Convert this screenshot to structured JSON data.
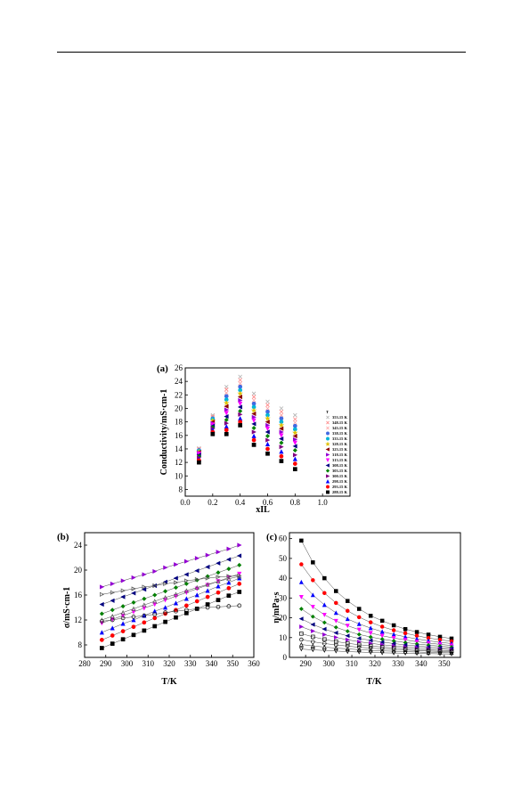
{
  "chart_data": [
    {
      "id": "a",
      "type": "scatter",
      "panel_label": "(a)",
      "xlabel": "xIL",
      "ylabel": "Conductivity/mS·cm-1",
      "xlim": [
        0,
        1.2
      ],
      "ylim": [
        7,
        26
      ],
      "xticks": [
        "0.0",
        "0.2",
        "0.4",
        "0.6",
        "0.8",
        "1.0"
      ],
      "yticks": [
        "8",
        "10",
        "12",
        "14",
        "16",
        "18",
        "20",
        "22",
        "24",
        "26"
      ],
      "legend_title": "T",
      "legend_placement": "right",
      "x": [
        0.1,
        0.2,
        0.3,
        0.4,
        0.5,
        0.6,
        0.7,
        0.8
      ],
      "series": [
        {
          "name": "353.15 K",
          "color": "#b0b0b0",
          "marker": "x",
          "values": [
            14.1,
            19.0,
            23.2,
            24.7,
            22.2,
            21.0,
            20.0,
            19.0
          ]
        },
        {
          "name": "348.15 K",
          "color": "#ff7f7f",
          "marker": "x",
          "values": [
            14.0,
            18.8,
            22.8,
            24.2,
            21.7,
            20.5,
            19.5,
            18.4
          ]
        },
        {
          "name": "343.15 K",
          "color": "#ffa0a0",
          "marker": "x",
          "values": [
            13.9,
            18.7,
            22.3,
            23.7,
            21.2,
            20.0,
            19.0,
            17.9
          ]
        },
        {
          "name": "338.15 K",
          "color": "#4169e1",
          "marker": "circle",
          "values": [
            13.8,
            18.5,
            21.8,
            23.2,
            20.7,
            19.5,
            18.5,
            17.4
          ]
        },
        {
          "name": "333.15 K",
          "color": "#00b4d8",
          "marker": "circle",
          "values": [
            13.7,
            18.4,
            21.3,
            22.7,
            20.2,
            19.0,
            18.0,
            16.9
          ]
        },
        {
          "name": "328.15 K",
          "color": "#e0c000",
          "marker": "star",
          "values": [
            13.6,
            18.2,
            20.8,
            22.2,
            19.7,
            18.5,
            17.5,
            16.4
          ]
        },
        {
          "name": "323.15 K",
          "color": "#8b0000",
          "marker": "triangle-left",
          "values": [
            13.5,
            18.0,
            20.3,
            21.7,
            19.2,
            18.0,
            17.0,
            15.9
          ]
        },
        {
          "name": "318.15 K",
          "color": "#9400d3",
          "marker": "triangle-right",
          "values": [
            13.4,
            17.8,
            19.8,
            21.2,
            18.7,
            17.5,
            16.5,
            15.4
          ]
        },
        {
          "name": "313.15 K",
          "color": "#ff00ff",
          "marker": "triangle-down",
          "values": [
            13.3,
            17.6,
            19.3,
            20.7,
            18.2,
            17.0,
            16.0,
            14.9
          ]
        },
        {
          "name": "308.15 K",
          "color": "#000080",
          "marker": "triangle-left",
          "values": [
            13.1,
            17.4,
            18.8,
            20.2,
            17.7,
            16.5,
            15.5,
            14.4
          ]
        },
        {
          "name": "303.15 K",
          "color": "#008000",
          "marker": "diamond",
          "values": [
            12.9,
            17.2,
            18.3,
            19.6,
            17.1,
            15.9,
            14.9,
            13.8
          ]
        },
        {
          "name": "300.15 K",
          "color": "#800080",
          "marker": "triangle-right",
          "values": [
            12.7,
            17.0,
            17.8,
            19.1,
            16.5,
            15.3,
            14.3,
            13.1
          ]
        },
        {
          "name": "298.15 K",
          "color": "#0000ff",
          "marker": "triangle-up",
          "values": [
            12.5,
            16.8,
            17.3,
            18.5,
            15.9,
            14.7,
            13.6,
            12.5
          ]
        },
        {
          "name": "293.15 K",
          "color": "#ff0000",
          "marker": "circle",
          "values": [
            12.3,
            16.5,
            16.8,
            18.0,
            15.3,
            14.0,
            12.9,
            11.8
          ]
        },
        {
          "name": "288.15 K",
          "color": "#000000",
          "marker": "square",
          "values": [
            12.0,
            16.2,
            16.2,
            17.5,
            14.6,
            13.3,
            12.2,
            11.0
          ]
        }
      ]
    },
    {
      "id": "b",
      "type": "scatter",
      "panel_label": "(b)",
      "xlabel": "T/K",
      "ylabel": "σ/mS·cm-1",
      "xlim": [
        280,
        360
      ],
      "ylim": [
        6,
        26
      ],
      "xticks": [
        "280",
        "290",
        "300",
        "310",
        "320",
        "330",
        "340",
        "350",
        "360"
      ],
      "yticks": [
        "8",
        "12",
        "16",
        "20",
        "24"
      ],
      "x": [
        288.15,
        293.15,
        298.15,
        303.15,
        308.15,
        313.15,
        318.15,
        323.15,
        328.15,
        333.15,
        338.15,
        343.15,
        348.15,
        353.15
      ],
      "series": [
        {
          "color": "#000000",
          "marker": "square",
          "filled": true,
          "values": [
            7.5,
            8.2,
            8.9,
            9.6,
            10.3,
            11.0,
            11.7,
            12.4,
            13.1,
            13.8,
            14.5,
            15.2,
            15.9,
            16.5
          ]
        },
        {
          "color": "#ff0000",
          "marker": "circle",
          "filled": true,
          "values": [
            8.8,
            9.5,
            10.2,
            10.9,
            11.6,
            12.3,
            13.0,
            13.6,
            14.3,
            15.0,
            15.7,
            16.4,
            17.1,
            17.8
          ]
        },
        {
          "color": "#0000ff",
          "marker": "triangle-up",
          "filled": true,
          "values": [
            10.0,
            10.7,
            11.4,
            12.0,
            12.7,
            13.4,
            14.0,
            14.7,
            15.4,
            16.0,
            16.7,
            17.4,
            18.0,
            18.7
          ]
        },
        {
          "color": "#ff00ff",
          "marker": "triangle-down",
          "filled": true,
          "values": [
            11.5,
            12.1,
            12.7,
            13.3,
            13.9,
            14.5,
            15.2,
            15.8,
            16.4,
            17.0,
            17.6,
            18.2,
            18.8,
            19.4
          ]
        },
        {
          "color": "#008000",
          "marker": "diamond",
          "filled": true,
          "values": [
            13.0,
            13.6,
            14.2,
            14.8,
            15.4,
            16.0,
            16.6,
            17.2,
            17.8,
            18.4,
            19.0,
            19.6,
            20.2,
            20.8
          ]
        },
        {
          "color": "#000080",
          "marker": "triangle-left",
          "filled": true,
          "values": [
            14.5,
            15.1,
            15.7,
            16.3,
            16.9,
            17.5,
            18.1,
            18.7,
            19.3,
            19.9,
            20.5,
            21.1,
            21.7,
            22.3
          ]
        },
        {
          "color": "#9400d3",
          "marker": "triangle-right",
          "filled": true,
          "values": [
            17.3,
            17.8,
            18.3,
            18.8,
            19.3,
            19.8,
            20.4,
            20.9,
            21.4,
            21.9,
            22.4,
            22.9,
            23.4,
            24.0
          ]
        },
        {
          "color": "#000000",
          "marker": "circle",
          "filled": false,
          "values": [
            11.8,
            12.0,
            12.3,
            12.5,
            12.7,
            12.9,
            13.2,
            13.4,
            13.6,
            13.8,
            14.0,
            14.1,
            14.2,
            14.3
          ]
        },
        {
          "color": "#555555",
          "marker": "triangle-right",
          "filled": false,
          "values": [
            16.1,
            16.4,
            16.7,
            17.0,
            17.3,
            17.5,
            17.8,
            18.0,
            18.3,
            18.5,
            18.7,
            18.9,
            19.0,
            19.1
          ]
        },
        {
          "color": "#555555",
          "marker": "triangle-up",
          "filled": false,
          "values": [
            12.0,
            12.6,
            13.2,
            13.8,
            14.4,
            15.0,
            15.6,
            16.1,
            16.7,
            17.2,
            17.7,
            18.2,
            18.6,
            19.0
          ]
        }
      ]
    },
    {
      "id": "c",
      "type": "scatter",
      "panel_label": "(c)",
      "xlabel": "T/K",
      "ylabel": "η/mPa·s",
      "xlim": [
        283,
        357
      ],
      "ylim": [
        0,
        63
      ],
      "xticks": [
        "290",
        "300",
        "310",
        "320",
        "330",
        "340",
        "350"
      ],
      "yticks": [
        "0",
        "10",
        "20",
        "30",
        "40",
        "50",
        "60"
      ],
      "x": [
        288.15,
        293.15,
        298.15,
        303.15,
        308.15,
        313.15,
        318.15,
        323.15,
        328.15,
        333.15,
        338.15,
        343.15,
        348.15,
        353.15
      ],
      "series": [
        {
          "color": "#000000",
          "marker": "square",
          "filled": true,
          "values": [
            59.0,
            48.0,
            40.0,
            33.5,
            28.5,
            24.5,
            21.0,
            18.5,
            16.2,
            14.3,
            12.8,
            11.5,
            10.4,
            9.5
          ]
        },
        {
          "color": "#ff0000",
          "marker": "circle",
          "filled": true,
          "values": [
            47.0,
            39.0,
            32.5,
            27.5,
            23.5,
            20.3,
            17.7,
            15.5,
            13.7,
            12.2,
            10.9,
            9.8,
            8.9,
            8.1
          ]
        },
        {
          "color": "#0000ff",
          "marker": "triangle-up",
          "filled": true,
          "values": [
            38.0,
            31.5,
            26.5,
            22.5,
            19.4,
            16.9,
            14.8,
            13.0,
            11.6,
            10.4,
            9.3,
            8.4,
            7.6,
            7.0
          ]
        },
        {
          "color": "#ff00ff",
          "marker": "triangle-down",
          "filled": true,
          "values": [
            30.5,
            25.5,
            21.5,
            18.4,
            16.0,
            14.0,
            12.3,
            10.9,
            9.8,
            8.8,
            7.9,
            7.2,
            6.6,
            6.0
          ]
        },
        {
          "color": "#008000",
          "marker": "diamond",
          "filled": true,
          "values": [
            24.5,
            20.6,
            17.6,
            15.2,
            13.2,
            11.6,
            10.3,
            9.2,
            8.3,
            7.5,
            6.8,
            6.2,
            5.7,
            5.2
          ]
        },
        {
          "color": "#000080",
          "marker": "triangle-left",
          "filled": true,
          "values": [
            19.5,
            16.6,
            14.3,
            12.4,
            10.9,
            9.6,
            8.6,
            7.7,
            7.0,
            6.3,
            5.8,
            5.3,
            4.9,
            4.5
          ]
        },
        {
          "color": "#9400d3",
          "marker": "triangle-right",
          "filled": true,
          "values": [
            15.5,
            13.3,
            11.5,
            10.1,
            8.9,
            7.9,
            7.1,
            6.4,
            5.8,
            5.3,
            4.9,
            4.5,
            4.2,
            3.9
          ]
        },
        {
          "color": "#000000",
          "marker": "square",
          "filled": false,
          "values": [
            12.0,
            10.4,
            9.1,
            8.0,
            7.1,
            6.4,
            5.8,
            5.2,
            4.8,
            4.4,
            4.0,
            3.7,
            3.5,
            3.2
          ]
        },
        {
          "color": "#000000",
          "marker": "circle",
          "filled": false,
          "values": [
            9.0,
            7.9,
            7.0,
            6.3,
            5.7,
            5.1,
            4.7,
            4.3,
            4.0,
            3.7,
            3.4,
            3.2,
            3.0,
            2.8
          ]
        },
        {
          "color": "#000000",
          "marker": "triangle-up",
          "filled": false,
          "values": [
            6.5,
            5.8,
            5.2,
            4.7,
            4.3,
            3.9,
            3.6,
            3.3,
            3.1,
            2.9,
            2.7,
            2.5,
            2.4,
            2.3
          ]
        },
        {
          "color": "#000000",
          "marker": "triangle-down",
          "filled": false,
          "values": [
            4.2,
            3.8,
            3.5,
            3.2,
            2.9,
            2.7,
            2.5,
            2.3,
            2.2,
            2.1,
            2.0,
            1.9,
            1.8,
            1.7
          ]
        }
      ]
    }
  ]
}
